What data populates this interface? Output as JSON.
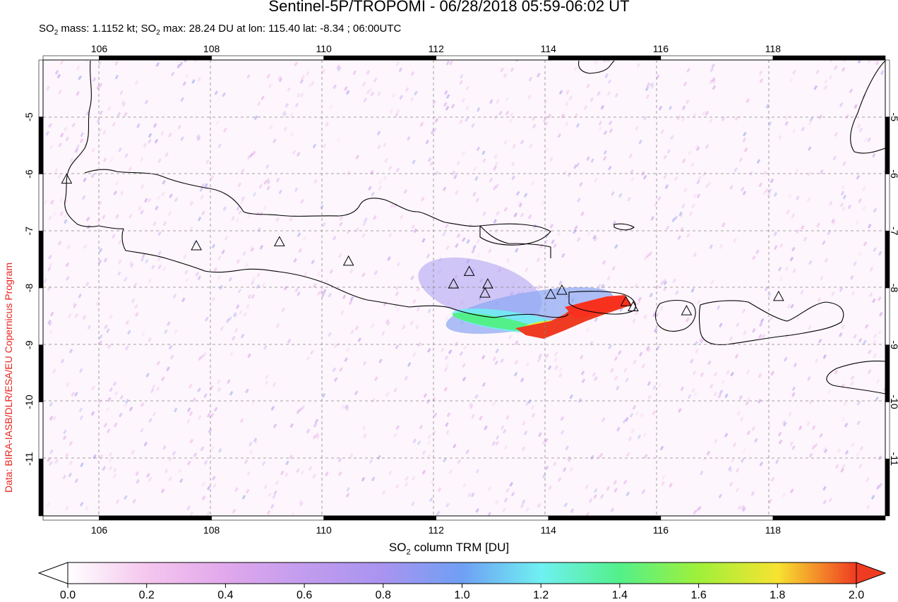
{
  "header": {
    "title": "Sentinel-5P/TROPOMI - 06/28/2018 05:59-06:02 UT",
    "subtitle_prefix": "SO",
    "subtitle_sub": "2",
    "subtitle_mass": " mass: 1.1152 kt; SO",
    "subtitle_sub2": "2",
    "subtitle_rest": " max: 28.24 DU at lon: 115.40 lat: -8.34 ; 06:00UTC"
  },
  "credit": "Data: BIRA-IASB/DLR/ESA/EU Copernicus Program",
  "map": {
    "lon_range": [
      105.0,
      120.0
    ],
    "lat_range": [
      -12.0,
      -4.0
    ],
    "lon_ticks": [
      "106",
      "108",
      "110",
      "112",
      "114",
      "116",
      "118"
    ],
    "lat_ticks": [
      "-5",
      "-6",
      "-7",
      "-8",
      "-9",
      "-10",
      "-11"
    ],
    "plume_max_color": "#e8251e",
    "volcano_marker": "triangle-icon",
    "coast_color": "#000000",
    "volcanoes": [
      {
        "lon": 105.42,
        "lat": -6.1
      },
      {
        "lon": 107.73,
        "lat": -7.27
      },
      {
        "lon": 109.21,
        "lat": -7.2
      },
      {
        "lon": 110.44,
        "lat": -7.54
      },
      {
        "lon": 112.31,
        "lat": -7.94
      },
      {
        "lon": 112.59,
        "lat": -7.72
      },
      {
        "lon": 112.92,
        "lat": -7.94
      },
      {
        "lon": 112.87,
        "lat": -8.1
      },
      {
        "lon": 114.04,
        "lat": -8.12
      },
      {
        "lon": 114.24,
        "lat": -8.05
      },
      {
        "lon": 115.38,
        "lat": -8.25
      },
      {
        "lon": 115.51,
        "lat": -8.34
      },
      {
        "lon": 116.46,
        "lat": -8.41
      },
      {
        "lon": 118.1,
        "lat": -8.16
      }
    ]
  },
  "colorbar": {
    "title_prefix": "SO",
    "title_sub": "2",
    "title_rest": " column TRM [DU]",
    "ticks": [
      "0.0",
      "0.2",
      "0.4",
      "0.6",
      "0.8",
      "1.0",
      "1.2",
      "1.4",
      "1.6",
      "1.8",
      "2.0"
    ],
    "colors": [
      "#ffffff",
      "#f5c6ee",
      "#d3a0ec",
      "#a894f0",
      "#7fa6f5",
      "#6ff0f2",
      "#53f08a",
      "#5ff03c",
      "#d6f031",
      "#f7c531",
      "#ef3b22"
    ]
  }
}
